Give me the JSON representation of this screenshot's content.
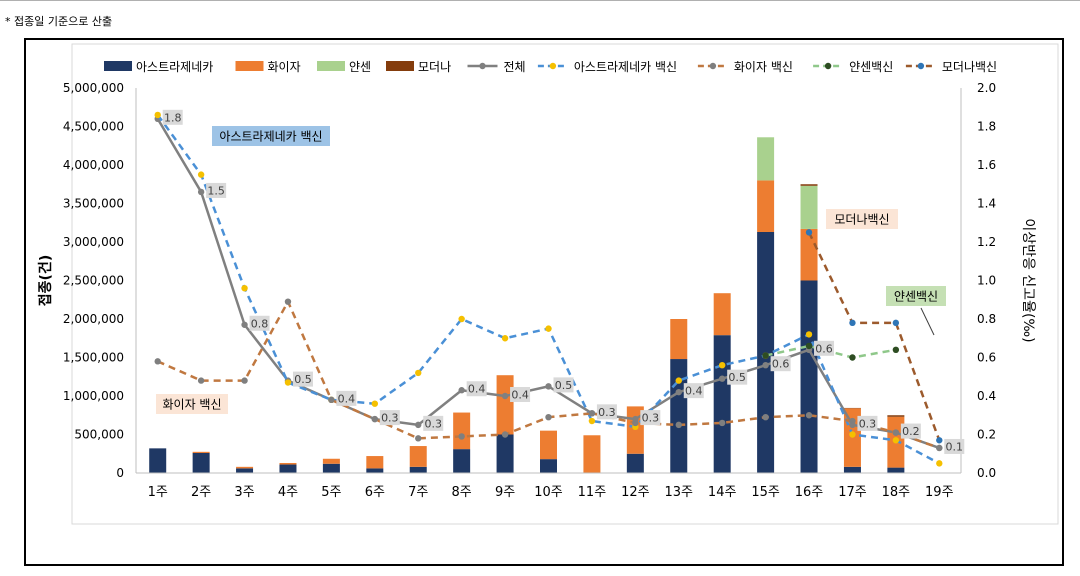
{
  "footnote": "* 접종일 기준으로 산출",
  "chart_data": {
    "type": "bar+line",
    "categories": [
      "1주",
      "2주",
      "3주",
      "4주",
      "5주",
      "6주",
      "7주",
      "8주",
      "9주",
      "10주",
      "11주",
      "12주",
      "13주",
      "14주",
      "15주",
      "16주",
      "17주",
      "18주",
      "19주"
    ],
    "ylabel": "접종(건)",
    "y2label": "이상반응 신고율(‰)",
    "ylim": [
      0,
      5000000
    ],
    "y2lim": [
      0,
      2.0
    ],
    "y_ticks": [
      "0",
      "500,000",
      "1,000,000",
      "1,500,000",
      "2,000,000",
      "2,500,000",
      "3,000,000",
      "3,500,000",
      "4,000,000",
      "4,500,000",
      "5,000,000"
    ],
    "y2_ticks": [
      "0.0",
      "0.2",
      "0.4",
      "0.6",
      "0.8",
      "1.0",
      "1.2",
      "1.4",
      "1.6",
      "1.8",
      "2.0"
    ],
    "bar_series": [
      {
        "name": "아스트라제네카",
        "color": "#1f3864",
        "values": [
          320000,
          260000,
          60000,
          110000,
          120000,
          60000,
          80000,
          310000,
          500000,
          180000,
          0,
          250000,
          1480000,
          1790000,
          3130000,
          2500000,
          80000,
          70000,
          0
        ]
      },
      {
        "name": "화이자",
        "color": "#ed7d31",
        "values": [
          0,
          15000,
          20000,
          20000,
          65000,
          160000,
          270000,
          475000,
          770000,
          370000,
          490000,
          615000,
          520000,
          545000,
          670000,
          670000,
          760000,
          660000,
          0
        ]
      },
      {
        "name": "얀센",
        "color": "#a9d18e",
        "values": [
          0,
          0,
          0,
          0,
          0,
          0,
          0,
          0,
          0,
          0,
          0,
          0,
          0,
          0,
          560000,
          560000,
          0,
          0,
          0
        ]
      },
      {
        "name": "모더나",
        "color": "#843c0c",
        "values": [
          0,
          0,
          0,
          0,
          0,
          0,
          0,
          0,
          0,
          0,
          0,
          0,
          0,
          0,
          0,
          20000,
          5000,
          20000,
          0
        ]
      }
    ],
    "line_series": [
      {
        "name": "전체",
        "color": "#808080",
        "style": "solid",
        "values": [
          1.84,
          1.46,
          0.77,
          0.48,
          0.38,
          0.28,
          0.25,
          0.43,
          0.4,
          0.45,
          0.31,
          0.28,
          0.42,
          0.49,
          0.56,
          0.64,
          0.25,
          0.21,
          0.13
        ],
        "labels": [
          "1.8",
          "1.5",
          "0.8",
          "0.5",
          "0.4",
          "0.3",
          "0.3",
          "0.4",
          "0.4",
          "0.5",
          "0.3",
          "0.3",
          "0.4",
          "0.5",
          "0.6",
          "0.6",
          "0.3",
          "0.2",
          "0.1"
        ]
      },
      {
        "name": "아스트라제네카 백신",
        "color": "#4a90d6",
        "style": "dashed",
        "marker": "#f5c000",
        "values": [
          1.86,
          1.55,
          0.96,
          0.47,
          0.38,
          0.36,
          0.52,
          0.8,
          0.7,
          0.75,
          0.27,
          0.24,
          0.48,
          0.56,
          0.61,
          0.72,
          0.2,
          0.17,
          0.05
        ]
      },
      {
        "name": "화이자 백신",
        "color": "#c07840",
        "style": "dashed",
        "marker": "#7f7f7f",
        "values": [
          0.58,
          0.48,
          0.48,
          0.89,
          0.38,
          0.28,
          0.18,
          0.19,
          0.2,
          0.29,
          0.31,
          0.26,
          0.25,
          0.26,
          0.29,
          0.3,
          0.27,
          0.21,
          0.13
        ]
      },
      {
        "name": "얀센백신",
        "color": "#8fc88a",
        "style": "dashed",
        "marker": "#2e4d22",
        "values": [
          null,
          null,
          null,
          null,
          null,
          null,
          null,
          null,
          null,
          null,
          null,
          null,
          null,
          null,
          0.61,
          0.66,
          0.6,
          0.64,
          null
        ]
      },
      {
        "name": "모더나백신",
        "color": "#9c5a2c",
        "style": "dashed",
        "marker": "#2e75b6",
        "values": [
          null,
          null,
          null,
          null,
          null,
          null,
          null,
          null,
          null,
          null,
          null,
          null,
          null,
          null,
          null,
          1.25,
          0.78,
          0.78,
          0.17
        ]
      }
    ],
    "legend": [
      "아스트라제네카",
      "화이자",
      "얀센",
      "모더나",
      "전체",
      "아스트라제네카 백신",
      "화이자 백신",
      "얀센백신",
      "모더나백신"
    ],
    "callouts": [
      {
        "text": "아스트라제네카 백신",
        "bg": "#9dc3e6"
      },
      {
        "text": "화이자 백신",
        "bg": "#fbe5d6"
      },
      {
        "text": "모더나백신",
        "bg": "#fbe5d6"
      },
      {
        "text": "얀센백신",
        "bg": "#c5e0b4"
      }
    ]
  }
}
